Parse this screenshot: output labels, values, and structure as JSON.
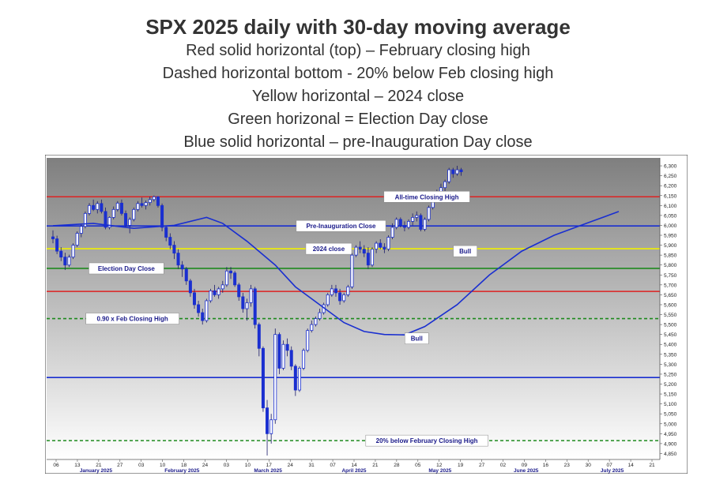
{
  "header": {
    "title": "SPX 2025 daily with 30-day moving average",
    "subtitles": [
      "Red solid horizontal (top) – February closing high",
      "Dashed horizontal bottom - 20% below Feb closing high",
      "Yellow horizontal – 2024 close",
      "Green horizonal = Election Day close",
      "Blue solid horizontal – pre-Inauguration Day close"
    ]
  },
  "chart_data": {
    "type": "candlestick",
    "yscale": "linear",
    "ylim": [
      4820,
      6340
    ],
    "y_ticks": [
      4850,
      4900,
      4950,
      5000,
      5050,
      5100,
      5150,
      5200,
      5250,
      5300,
      5350,
      5400,
      5450,
      5500,
      5550,
      5600,
      5650,
      5700,
      5750,
      5800,
      5850,
      5900,
      5950,
      6000,
      6050,
      6100,
      6150,
      6200,
      6250,
      6300
    ],
    "x_ticks": [
      "06",
      "13",
      "21",
      "27",
      "03",
      "10",
      "18",
      "24",
      "03",
      "10",
      "17",
      "24",
      "31",
      "07",
      "14",
      "21",
      "28",
      "05",
      "12",
      "19",
      "27",
      "02",
      "09",
      "16",
      "23",
      "30",
      "07",
      "14",
      "21"
    ],
    "x_month_labels": [
      "January 2025",
      "February 2025",
      "March 2025",
      "April 2025",
      "May 2025",
      "June 2025",
      "July 2025"
    ],
    "horizontal_lines": [
      {
        "label": "All-time Closing High",
        "value": 6144,
        "color": "#dd2222",
        "style": "solid"
      },
      {
        "label": "",
        "value": 5667,
        "color": "#dd2222",
        "style": "solid"
      },
      {
        "label": "Pre-Inauguration Close",
        "value": 5997,
        "color": "#1a2fd0",
        "style": "solid"
      },
      {
        "label": "2024 close",
        "value": 5882,
        "color": "#f0f000",
        "style": "solid"
      },
      {
        "label": "Election Day Close",
        "value": 5783,
        "color": "#1e8a1e",
        "style": "solid"
      },
      {
        "label": "0.90 x Feb Closing High",
        "value": 5530,
        "color": "#1e8a1e",
        "style": "dashed"
      },
      {
        "label": "",
        "value": 5233,
        "color": "#1a2fd0",
        "style": "solid"
      },
      {
        "label": "20% below February Closing High",
        "value": 4915,
        "color": "#1e8a1e",
        "style": "dashed"
      }
    ],
    "annotations": [
      {
        "label": "Bull",
        "x_index": 102,
        "y": 5870
      },
      {
        "label": "Bull",
        "x_index": 90,
        "y": 5430
      }
    ],
    "moving_average": {
      "period": 30,
      "color": "#1a2fd0",
      "points": [
        [
          0,
          5998
        ],
        [
          10,
          6010
        ],
        [
          20,
          5985
        ],
        [
          30,
          6000
        ],
        [
          38,
          6040
        ],
        [
          42,
          6010
        ],
        [
          48,
          5920
        ],
        [
          55,
          5800
        ],
        [
          60,
          5690
        ],
        [
          66,
          5600
        ],
        [
          72,
          5510
        ],
        [
          77,
          5465
        ],
        [
          82,
          5450
        ],
        [
          87,
          5448
        ],
        [
          92,
          5490
        ],
        [
          100,
          5600
        ],
        [
          108,
          5750
        ],
        [
          116,
          5870
        ],
        [
          124,
          5950
        ],
        [
          132,
          6010
        ],
        [
          140,
          6070
        ]
      ]
    },
    "series": [
      {
        "values": [
          [
            5942,
            5975,
            5910,
            5932
          ],
          [
            5932,
            5948,
            5855,
            5870
          ],
          [
            5870,
            5890,
            5820,
            5840
          ],
          [
            5840,
            5862,
            5775,
            5800
          ],
          [
            5800,
            5852,
            5790,
            5840
          ],
          [
            5840,
            5910,
            5830,
            5900
          ],
          [
            5900,
            5970,
            5890,
            5960
          ],
          [
            5960,
            6010,
            5940,
            5995
          ],
          [
            5995,
            6070,
            5985,
            6060
          ],
          [
            6060,
            6112,
            6050,
            6100
          ],
          [
            6100,
            6130,
            6072,
            6080
          ],
          [
            6080,
            6122,
            6060,
            6110
          ],
          [
            6110,
            6130,
            6060,
            6070
          ],
          [
            6070,
            6090,
            5980,
            5990
          ],
          [
            5990,
            6045,
            5980,
            6040
          ],
          [
            6040,
            6095,
            6030,
            6080
          ],
          [
            6080,
            6122,
            6070,
            6112
          ],
          [
            6112,
            6130,
            6050,
            6060
          ],
          [
            6060,
            6075,
            5990,
            6000
          ],
          [
            6000,
            6040,
            5960,
            6030
          ],
          [
            6030,
            6090,
            6020,
            6080
          ],
          [
            6080,
            6122,
            6070,
            6110
          ],
          [
            6110,
            6140,
            6090,
            6100
          ],
          [
            6100,
            6125,
            6080,
            6115
          ],
          [
            6115,
            6145,
            6100,
            6130
          ],
          [
            6130,
            6150,
            6120,
            6144
          ],
          [
            6144,
            6147,
            6090,
            6100
          ],
          [
            6100,
            6110,
            5970,
            5990
          ],
          [
            5990,
            6000,
            5920,
            5940
          ],
          [
            5940,
            5960,
            5880,
            5900
          ],
          [
            5900,
            5920,
            5830,
            5860
          ],
          [
            5860,
            5880,
            5780,
            5800
          ],
          [
            5800,
            5820,
            5740,
            5780
          ],
          [
            5780,
            5790,
            5700,
            5720
          ],
          [
            5720,
            5730,
            5640,
            5660
          ],
          [
            5660,
            5680,
            5580,
            5600
          ],
          [
            5600,
            5620,
            5540,
            5560
          ],
          [
            5560,
            5580,
            5500,
            5520
          ],
          [
            5520,
            5630,
            5510,
            5620
          ],
          [
            5620,
            5680,
            5610,
            5670
          ],
          [
            5670,
            5700,
            5640,
            5650
          ],
          [
            5650,
            5690,
            5630,
            5680
          ],
          [
            5680,
            5720,
            5660,
            5700
          ],
          [
            5700,
            5790,
            5690,
            5770
          ],
          [
            5770,
            5790,
            5730,
            5760
          ],
          [
            5760,
            5770,
            5690,
            5700
          ],
          [
            5700,
            5710,
            5620,
            5640
          ],
          [
            5640,
            5660,
            5560,
            5580
          ],
          [
            5580,
            5630,
            5520,
            5610
          ],
          [
            5610,
            5700,
            5590,
            5680
          ],
          [
            5680,
            5690,
            5480,
            5500
          ],
          [
            5500,
            5510,
            5340,
            5380
          ],
          [
            5380,
            5390,
            5060,
            5080
          ],
          [
            5080,
            5120,
            4840,
            4950
          ],
          [
            4950,
            5050,
            4900,
            5020
          ],
          [
            5020,
            5480,
            5000,
            5450
          ],
          [
            5450,
            5460,
            5250,
            5280
          ],
          [
            5280,
            5420,
            5270,
            5400
          ],
          [
            5400,
            5430,
            5340,
            5370
          ],
          [
            5370,
            5390,
            5270,
            5290
          ],
          [
            5290,
            5300,
            5140,
            5170
          ],
          [
            5170,
            5290,
            5160,
            5280
          ],
          [
            5280,
            5380,
            5270,
            5370
          ],
          [
            5370,
            5480,
            5360,
            5470
          ],
          [
            5470,
            5520,
            5460,
            5500
          ],
          [
            5500,
            5540,
            5490,
            5530
          ],
          [
            5530,
            5580,
            5520,
            5560
          ],
          [
            5560,
            5610,
            5550,
            5600
          ],
          [
            5600,
            5660,
            5590,
            5650
          ],
          [
            5650,
            5700,
            5640,
            5680
          ],
          [
            5680,
            5700,
            5640,
            5660
          ],
          [
            5660,
            5680,
            5600,
            5620
          ],
          [
            5620,
            5660,
            5610,
            5650
          ],
          [
            5650,
            5700,
            5640,
            5690
          ],
          [
            5690,
            5860,
            5680,
            5850
          ],
          [
            5850,
            5900,
            5840,
            5890
          ],
          [
            5890,
            5920,
            5860,
            5880
          ],
          [
            5880,
            5900,
            5840,
            5860
          ],
          [
            5860,
            5890,
            5780,
            5800
          ],
          [
            5800,
            5890,
            5790,
            5880
          ],
          [
            5880,
            5920,
            5860,
            5910
          ],
          [
            5910,
            5930,
            5880,
            5890
          ],
          [
            5890,
            5910,
            5860,
            5880
          ],
          [
            5880,
            5950,
            5870,
            5940
          ],
          [
            5940,
            6010,
            5930,
            5990
          ],
          [
            5990,
            6040,
            5980,
            6030
          ],
          [
            6030,
            6040,
            5990,
            6000
          ],
          [
            6000,
            6020,
            5970,
            5990
          ],
          [
            5990,
            6030,
            5980,
            6020
          ],
          [
            6020,
            6060,
            6000,
            6040
          ],
          [
            6040,
            6070,
            6020,
            6050
          ],
          [
            6050,
            6060,
            5970,
            5980
          ],
          [
            5980,
            6040,
            5970,
            6030
          ],
          [
            6030,
            6100,
            6020,
            6090
          ],
          [
            6090,
            6140,
            6080,
            6130
          ],
          [
            6130,
            6180,
            6120,
            6170
          ],
          [
            6170,
            6210,
            6150,
            6190
          ],
          [
            6190,
            6230,
            6170,
            6220
          ],
          [
            6220,
            6290,
            6210,
            6280
          ],
          [
            6280,
            6290,
            6240,
            6260
          ],
          [
            6260,
            6300,
            6250,
            6280
          ],
          [
            6280,
            6290,
            6250,
            6270
          ]
        ]
      }
    ]
  },
  "colors": {
    "bull_candle": "#1a2fd0",
    "bear_candle": "#1a2fd0",
    "ma": "#1a2fd0",
    "plot_top": "#7f7f7f",
    "plot_bottom": "#ffffff"
  }
}
